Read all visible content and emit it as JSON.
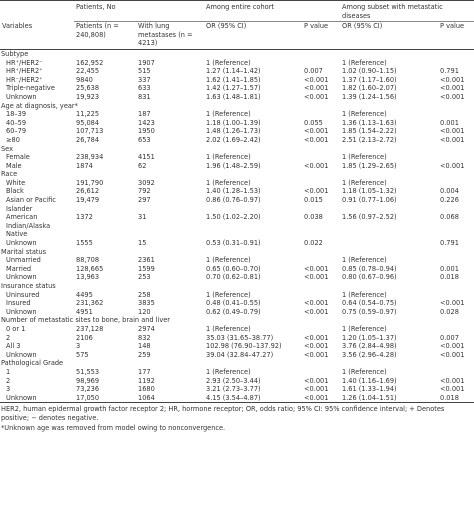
{
  "table": {
    "group_headers": [
      "Patients, No",
      "Among entire cohort",
      "Among subset with metastatic diseases"
    ],
    "headers": [
      "Variables",
      "Patients (n = 240,808)",
      "With lung metastases (n = 4213)",
      "OR (95% CI)",
      "P value",
      "OR (95% CI)",
      "P value"
    ],
    "sections": [
      {
        "title": "Subtype",
        "rows": [
          [
            "HR⁺/HER2⁻",
            "162,952",
            "1907",
            "1 (Reference)",
            null,
            "1 (Reference)",
            null
          ],
          [
            "HR⁺/HER2⁺",
            "22,455",
            "515",
            "1.27 (1.14–1.42)",
            "0.007",
            "1.02 (0.90–1.15)",
            "0.791"
          ],
          [
            "HR⁻/HER2⁺",
            "9840",
            "337",
            "1.62 (1.41–1.85)",
            "<0.001",
            "1.37 (1.17–1.60)",
            "<0.001"
          ],
          [
            "Triple-negative",
            "25,638",
            "633",
            "1.42 (1.27–1.57)",
            "<0.001",
            "1.82 (1.60–2.07)",
            "<0.001"
          ],
          [
            "Unknown",
            "19,923",
            "831",
            "1.63 (1.48–1.81)",
            "<0.001",
            "1.39 (1.24–1.56)",
            "<0.001"
          ]
        ]
      },
      {
        "title": "Age at diagnosis, year*",
        "rows": [
          [
            "18–39",
            "11,225",
            "187",
            "1 (Reference)",
            null,
            "1 (Reference)",
            null
          ],
          [
            "40–59",
            "95,084",
            "1423",
            "1.18 (1.00–1.39)",
            "0.055",
            "1.36 (1.13–1.63)",
            "0.001"
          ],
          [
            "60–79",
            "107,713",
            "1950",
            "1.48 (1.26–1.73)",
            "<0.001",
            "1.85 (1.54–2.22)",
            "<0.001"
          ],
          [
            "≥80",
            "26,784",
            "653",
            "2.02 (1.69–2.42)",
            "<0.001",
            "2.51 (2.13–2.72)",
            "<0.001"
          ]
        ]
      },
      {
        "title": "Sex",
        "rows": [
          [
            "Female",
            "238,934",
            "4151",
            "1 (Reference)",
            null,
            "1 (Reference)",
            null
          ],
          [
            "Male",
            "1874",
            "62",
            "1.96 (1.48–2.59)",
            "<0.001",
            "1.85 (1.29–2.65)",
            "<0.001"
          ]
        ]
      },
      {
        "title": "Race",
        "rows": [
          [
            "White",
            "191,790",
            "3092",
            "1 (Reference)",
            null,
            "1 (Reference)",
            null
          ],
          [
            "Black",
            "26,612",
            "792",
            "1.40 (1.28–1.53)",
            "<0.001",
            "1.18 (1.05–1.32)",
            "0.004"
          ],
          [
            "Asian or Pacific Islander",
            "19,479",
            "297",
            "0.86 (0.76–0.97)",
            "0.015",
            "0.91 (0.77–1.06)",
            "0.226"
          ],
          [
            "American Indian/Alaska Native",
            "1372",
            "31",
            "1.50 (1.02–2.20)",
            "0.038",
            "1.56 (0.97–2.52)",
            "0.068"
          ],
          [
            "Unknown",
            "1555",
            "15",
            "0.53 (0.31–0.91)",
            "0.022",
            null,
            "0.791"
          ]
        ]
      },
      {
        "title": "Marital status",
        "rows": [
          [
            "Unmarried",
            "88,708",
            "2361",
            "1 (Reference)",
            null,
            "1 (Reference)",
            null
          ],
          [
            "Married",
            "128,665",
            "1599",
            "0.65 (0.60–0.70)",
            "<0.001",
            "0.85 (0.78–0.94)",
            "0.001"
          ],
          [
            "Unknown",
            "13,963",
            "253",
            "0.70 (0.62–0.81)",
            "<0.001",
            "0.80 (0.67–0.96)",
            "0.018"
          ]
        ]
      },
      {
        "title": "Insurance status",
        "rows": [
          [
            "Uninsured",
            "4495",
            "258",
            "1 (Reference)",
            null,
            "1 (Reference)",
            null
          ],
          [
            "Insured",
            "231,362",
            "3835",
            "0.48 (0.41–0.55)",
            "<0.001",
            "0.64 (0.54–0.75)",
            "<0.001"
          ],
          [
            "Unknown",
            "4951",
            "120",
            "0.62 (0.49–0.79)",
            "<0.001",
            "0.75 (0.59–0.97)",
            "0.028"
          ]
        ]
      },
      {
        "title": "Number of metastatic sites to bone, brain and liver",
        "rows": [
          [
            "0 or 1",
            "237,128",
            "2974",
            "1 (Reference)",
            null,
            "1 (Reference)",
            null
          ],
          [
            "2",
            "2106",
            "832",
            "35.03 (31.65–38.77)",
            "<0.001",
            "1.20 (1.05–1.37)",
            "0.007"
          ],
          [
            "All 3",
            "3",
            "148",
            "102.98 (76.90–137.92)",
            "<0.001",
            "3.76 (2.84–4.98)",
            "<0.001"
          ],
          [
            "Unknown",
            "575",
            "259",
            "39.04 (32.84–47.27)",
            "<0.001",
            "3.56 (2.96–4.28)",
            "<0.001"
          ]
        ]
      },
      {
        "title": "Pathological Grade",
        "rows": [
          [
            "1",
            "51,553",
            "177",
            "1 (Reference)",
            null,
            "1 (Reference)",
            null
          ],
          [
            "2",
            "98,969",
            "1192",
            "2.93 (2.50–3.44)",
            "<0.001",
            "1.40 (1.16–1.69)",
            "<0.001"
          ],
          [
            "3",
            "73,236",
            "1680",
            "3.21 (2.73–3.77)",
            "<0.001",
            "1.61 (1.33–1.94)",
            "<0.001"
          ],
          [
            "Unknown",
            "17,050",
            "1064",
            "4.15 (3.54–4.87)",
            "<0.001",
            "1.26 (1.04–1.51)",
            "0.018"
          ]
        ]
      }
    ]
  },
  "footnotes": [
    "HER2, human epidermal growth factor receptor 2; HR, hormone receptor; OR, odds ratio; 95% CI: 95% confidence interval; + Denotes positive; − denotes negative.",
    "*Unknown age was removed from model owing to nonconvergence."
  ]
}
